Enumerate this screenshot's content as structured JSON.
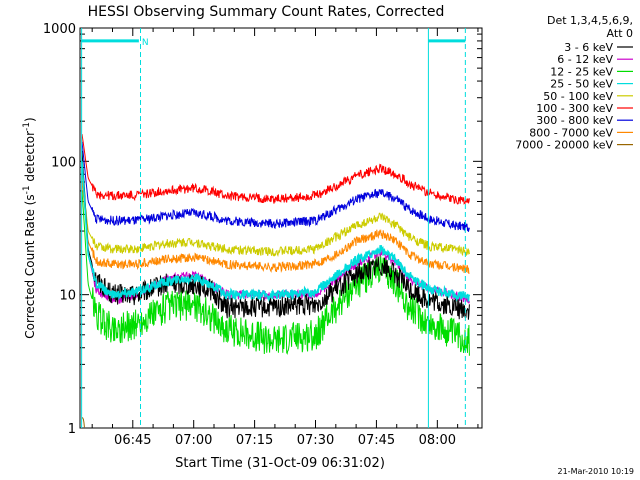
{
  "chart_data": {
    "type": "line",
    "title": "HESSI Observing Summary Count Rates, Corrected",
    "xlabel": "Start Time (31-Oct-09 06:31:02)",
    "ylabel_parts": [
      "Corrected Count Rate (s",
      "-1",
      " detector",
      "-1",
      ")"
    ],
    "y_scale": "log",
    "ylim": [
      1,
      1000
    ],
    "xlim_minutes_after_0600": [
      37.0,
      70.0
    ],
    "y_ticks": [
      "1",
      "10",
      "100",
      "1000"
    ],
    "x_ticks": [
      {
        "label": "06:45",
        "min": 45
      },
      {
        "label": "07:00",
        "min": 60
      },
      {
        "label": "07:15",
        "min": 75
      },
      {
        "label": "07:30",
        "min": 90
      },
      {
        "label": "07:45",
        "min": 105
      },
      {
        "label": "08:00",
        "min": 120
      }
    ],
    "legend_header": [
      "Det 1,3,4,5,6,9,",
      "Att 0"
    ],
    "legend_position": "right",
    "series": [
      {
        "name": "3 - 6 keV",
        "color": "#000000",
        "points": [
          [
            32.5,
            120
          ],
          [
            34,
            22
          ],
          [
            36,
            13
          ],
          [
            40,
            10
          ],
          [
            46,
            10
          ],
          [
            53,
            12
          ],
          [
            60,
            12
          ],
          [
            64,
            11
          ],
          [
            68,
            8
          ],
          [
            80,
            8
          ],
          [
            90,
            8.5
          ],
          [
            95,
            11
          ],
          [
            100,
            14
          ],
          [
            106,
            17
          ],
          [
            110,
            14
          ],
          [
            113,
            11
          ],
          [
            118,
            9
          ],
          [
            124,
            8
          ],
          [
            128,
            7.5
          ]
        ]
      },
      {
        "name": "6 - 12 keV",
        "color": "#cc00cc",
        "points": [
          [
            32.5,
            110
          ],
          [
            34,
            20
          ],
          [
            36,
            11
          ],
          [
            40,
            9
          ],
          [
            46,
            10
          ],
          [
            53,
            13
          ],
          [
            60,
            14
          ],
          [
            64,
            12
          ],
          [
            68,
            10
          ],
          [
            80,
            10
          ],
          [
            90,
            10
          ],
          [
            95,
            13
          ],
          [
            100,
            17
          ],
          [
            106,
            21
          ],
          [
            110,
            17
          ],
          [
            113,
            13
          ],
          [
            118,
            11
          ],
          [
            124,
            10
          ],
          [
            128,
            9
          ]
        ]
      },
      {
        "name": "12 - 25 keV",
        "color": "#00dd00",
        "points": [
          [
            32.5,
            60
          ],
          [
            34,
            12
          ],
          [
            36,
            7
          ],
          [
            40,
            5.5
          ],
          [
            46,
            6
          ],
          [
            53,
            8
          ],
          [
            60,
            8.5
          ],
          [
            64,
            7
          ],
          [
            68,
            5.5
          ],
          [
            80,
            4.5
          ],
          [
            90,
            5
          ],
          [
            95,
            8
          ],
          [
            100,
            12
          ],
          [
            106,
            16
          ],
          [
            110,
            12
          ],
          [
            113,
            8
          ],
          [
            118,
            6
          ],
          [
            124,
            5
          ],
          [
            128,
            4.5
          ]
        ]
      },
      {
        "name": "25 - 50 keV",
        "color": "#00dddd",
        "points": [
          [
            32.5,
            100
          ],
          [
            34,
            20
          ],
          [
            36,
            12
          ],
          [
            40,
            10
          ],
          [
            46,
            10.5
          ],
          [
            53,
            12.5
          ],
          [
            60,
            13.5
          ],
          [
            64,
            12
          ],
          [
            68,
            10
          ],
          [
            80,
            10
          ],
          [
            90,
            10.5
          ],
          [
            95,
            14
          ],
          [
            100,
            18
          ],
          [
            106,
            22
          ],
          [
            110,
            18
          ],
          [
            113,
            14
          ],
          [
            118,
            11
          ],
          [
            124,
            10
          ],
          [
            128,
            9.5
          ]
        ]
      },
      {
        "name": "50 - 100 keV",
        "color": "#cccc00",
        "points": [
          [
            32.5,
            80
          ],
          [
            34,
            30
          ],
          [
            36,
            23
          ],
          [
            40,
            22
          ],
          [
            46,
            22
          ],
          [
            53,
            24
          ],
          [
            60,
            25
          ],
          [
            64,
            23
          ],
          [
            68,
            22
          ],
          [
            80,
            21
          ],
          [
            90,
            22
          ],
          [
            95,
            27
          ],
          [
            100,
            33
          ],
          [
            106,
            38
          ],
          [
            110,
            33
          ],
          [
            113,
            27
          ],
          [
            118,
            23
          ],
          [
            124,
            22
          ],
          [
            128,
            21
          ]
        ]
      },
      {
        "name": "100 - 300 keV",
        "color": "#ff0000",
        "points": [
          [
            32.5,
            160
          ],
          [
            34,
            75
          ],
          [
            36,
            57
          ],
          [
            40,
            55
          ],
          [
            46,
            56
          ],
          [
            53,
            60
          ],
          [
            60,
            63
          ],
          [
            64,
            60
          ],
          [
            68,
            55
          ],
          [
            80,
            52
          ],
          [
            90,
            55
          ],
          [
            95,
            65
          ],
          [
            100,
            78
          ],
          [
            106,
            88
          ],
          [
            110,
            80
          ],
          [
            113,
            68
          ],
          [
            118,
            58
          ],
          [
            124,
            52
          ],
          [
            128,
            50
          ]
        ]
      },
      {
        "name": "300 - 800 keV",
        "color": "#0000dd",
        "points": [
          [
            32.5,
            140
          ],
          [
            34,
            50
          ],
          [
            36,
            37
          ],
          [
            40,
            36
          ],
          [
            46,
            36
          ],
          [
            53,
            39
          ],
          [
            60,
            41
          ],
          [
            64,
            39
          ],
          [
            68,
            36
          ],
          [
            80,
            34
          ],
          [
            90,
            36
          ],
          [
            95,
            43
          ],
          [
            100,
            52
          ],
          [
            106,
            58
          ],
          [
            110,
            52
          ],
          [
            113,
            44
          ],
          [
            118,
            37
          ],
          [
            124,
            33
          ],
          [
            128,
            32
          ]
        ]
      },
      {
        "name": "800 - 7000 keV",
        "color": "#ff8800",
        "points": [
          [
            32.5,
            70
          ],
          [
            34,
            25
          ],
          [
            36,
            18
          ],
          [
            40,
            17
          ],
          [
            46,
            17
          ],
          [
            53,
            18.5
          ],
          [
            60,
            19
          ],
          [
            64,
            18
          ],
          [
            68,
            17
          ],
          [
            80,
            16
          ],
          [
            90,
            17
          ],
          [
            95,
            20
          ],
          [
            100,
            25
          ],
          [
            106,
            29
          ],
          [
            110,
            25
          ],
          [
            113,
            20
          ],
          [
            118,
            17
          ],
          [
            124,
            16
          ],
          [
            128,
            15.5
          ]
        ]
      },
      {
        "name": "7000 - 20000 keV",
        "color": "#996600",
        "points": [
          [
            32.6,
            1.2
          ],
          [
            32.9,
            1.15
          ],
          [
            33.1,
            1.0
          ]
        ]
      }
    ],
    "observing_intervals": {
      "color": "#00dddd",
      "lines_min": [
        32.4,
        46.9,
        117.8,
        126.9
      ],
      "bars": [
        [
          32.4,
          46.5,
          ""
        ],
        [
          46.5,
          46.9,
          "N"
        ],
        [
          117.8,
          126.9,
          ""
        ]
      ],
      "bar_level": 800
    }
  },
  "footer_date": "21-Mar-2010 10:19"
}
